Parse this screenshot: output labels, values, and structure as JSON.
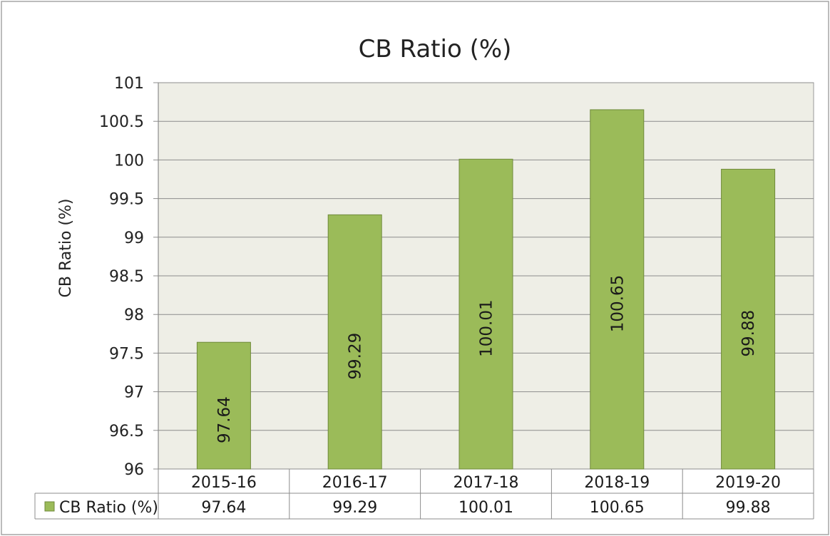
{
  "chart_data": {
    "type": "bar",
    "title": "CB Ratio (%)",
    "ylabel": "CB Ratio (%)",
    "xlabel": "",
    "categories": [
      "2015-16",
      "2016-17",
      "2017-18",
      "2018-19",
      "2019-20"
    ],
    "series": [
      {
        "name": "CB Ratio (%)",
        "values": [
          97.64,
          99.29,
          100.01,
          100.65,
          99.88
        ],
        "labels": [
          "97.64",
          "99.29",
          "100.01",
          "100.65",
          "99.88"
        ],
        "color": "#9bbb59"
      }
    ],
    "ylim": [
      96,
      101
    ],
    "yticks": [
      "96",
      "96.5",
      "97",
      "97.5",
      "98",
      "98.5",
      "99",
      "99.5",
      "100",
      "100.5",
      "101"
    ],
    "grid": true,
    "plot_background": "#eeeee6",
    "data_table": true
  }
}
